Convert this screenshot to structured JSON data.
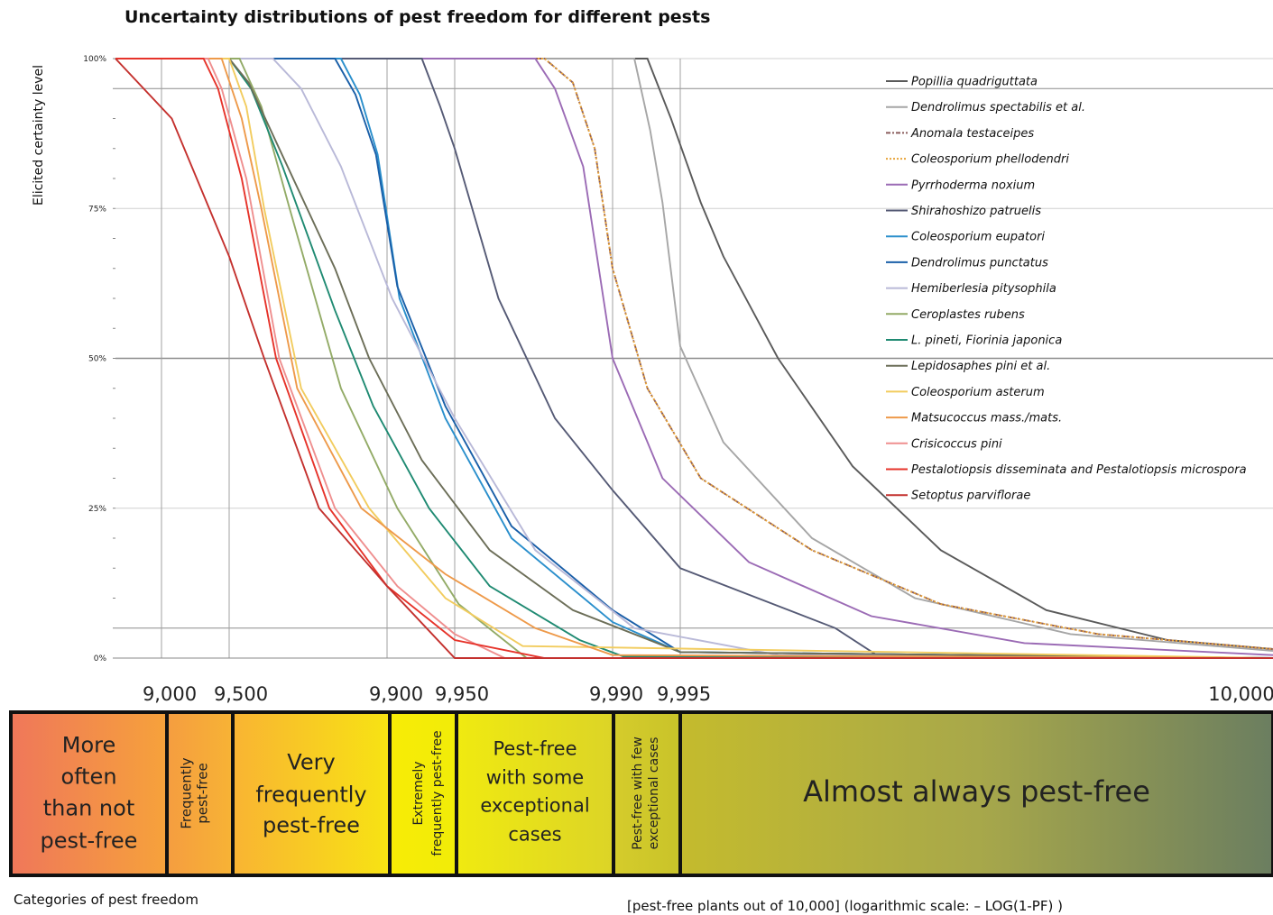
{
  "chart_data": {
    "type": "line",
    "title": "Uncertainty distributions of pest freedom for different pests",
    "ylabel": "Elicited certainty level",
    "y_ticks": [
      "0%",
      "25%",
      "50%",
      "75%",
      "100%"
    ],
    "ylim": [
      0,
      100
    ],
    "x_ticks": [
      "9,000",
      "9,500",
      "9,900",
      "9,950",
      "9,990",
      "9,995",
      "10,000"
    ],
    "x_scale": "log",
    "x_axis_note": "[pest-free plants out of 10,000] (logarithmic scale: – LOG(1-PF) )",
    "categories_label": "Categories of pest freedom",
    "grid": true,
    "legend_position": "top-right",
    "series": [
      {
        "name": "Popillia quadriguttata",
        "color": "#5a5a5a",
        "dash": "",
        "points": [
          [
            9993.0,
            100
          ],
          [
            9994.5,
            90
          ],
          [
            9995.5,
            76
          ],
          [
            9996.0,
            67
          ],
          [
            9997.0,
            50
          ],
          [
            9998.0,
            32
          ],
          [
            9998.8,
            18
          ],
          [
            9999.4,
            8
          ],
          [
            9999.8,
            3
          ],
          [
            10000,
            1.5
          ]
        ]
      },
      {
        "name": "Dendrolimus spectabilis et al.",
        "color": "#a6a6a6",
        "dash": "",
        "points": [
          [
            9992.0,
            100
          ],
          [
            9993.2,
            88
          ],
          [
            9994.0,
            76
          ],
          [
            9995.0,
            52
          ],
          [
            9996.0,
            36
          ],
          [
            9997.5,
            20
          ],
          [
            9998.6,
            10
          ],
          [
            9999.5,
            4
          ],
          [
            10000,
            1.2
          ]
        ]
      },
      {
        "name": "Anomala testaceipes",
        "color": "#8b5c5c",
        "dash": "8 3 2 3",
        "points": [
          [
            9980.0,
            100
          ],
          [
            9985.0,
            96
          ],
          [
            9988.0,
            85
          ],
          [
            9990.0,
            65
          ],
          [
            9993.0,
            45
          ],
          [
            9995.5,
            30
          ],
          [
            9997.5,
            18
          ],
          [
            9998.8,
            9
          ],
          [
            9999.6,
            4
          ],
          [
            10000,
            1.5
          ]
        ]
      },
      {
        "name": "Coleosporium phellodendri",
        "color": "#e8a43a",
        "dash": "2 2",
        "points": [
          [
            9980.0,
            100
          ],
          [
            9985.0,
            96
          ],
          [
            9988.0,
            85
          ],
          [
            9990.0,
            65
          ],
          [
            9993.0,
            45
          ],
          [
            9995.5,
            30
          ],
          [
            9997.5,
            18
          ],
          [
            9998.8,
            9
          ],
          [
            9999.6,
            4
          ],
          [
            10000,
            1.5
          ]
        ]
      },
      {
        "name": "Pyrrhoderma noxium",
        "color": "#9b6bb5",
        "dash": "",
        "points": [
          [
            9978.0,
            100
          ],
          [
            9982.0,
            95
          ],
          [
            9986.5,
            82
          ],
          [
            9990.0,
            50
          ],
          [
            9994.0,
            30
          ],
          [
            9996.5,
            16
          ],
          [
            9998.2,
            7
          ],
          [
            9999.3,
            2.5
          ],
          [
            10000,
            0.5
          ]
        ]
      },
      {
        "name": "Shirahoshizo patruelis",
        "color": "#555a75",
        "dash": "",
        "points": [
          [
            9930.0,
            100
          ],
          [
            9942.0,
            92
          ],
          [
            9950.0,
            85
          ],
          [
            9968.0,
            60
          ],
          [
            9982.0,
            40
          ],
          [
            9990.0,
            28
          ],
          [
            9995.0,
            15
          ],
          [
            9997.8,
            5
          ],
          [
            9998.3,
            0
          ]
        ]
      },
      {
        "name": "Coleosporium eupatori",
        "color": "#2a8fcc",
        "dash": "",
        "points": [
          [
            9840.0,
            100
          ],
          [
            9868.0,
            94
          ],
          [
            9890.0,
            84
          ],
          [
            9912.0,
            60
          ],
          [
            9945.0,
            40
          ],
          [
            9972.0,
            20
          ],
          [
            9990.0,
            6
          ],
          [
            9995.0,
            1
          ]
        ]
      },
      {
        "name": "Dendrolimus punctatus",
        "color": "#1a5fa8",
        "dash": "",
        "points": [
          [
            9830.0,
            100
          ],
          [
            9862.0,
            94
          ],
          [
            9888.0,
            84
          ],
          [
            9910.0,
            62
          ],
          [
            9945.0,
            42
          ],
          [
            9972.0,
            22
          ],
          [
            9990.0,
            8
          ],
          [
            9995.0,
            1
          ]
        ]
      },
      {
        "name": "Hemiberlesia pitysophila",
        "color": "#b9b9d8",
        "dash": "",
        "points": [
          [
            9680.0,
            100
          ],
          [
            9760.0,
            95
          ],
          [
            9840.0,
            82
          ],
          [
            9905.0,
            60
          ],
          [
            9950.0,
            40
          ],
          [
            9978.0,
            18
          ],
          [
            9992.0,
            5
          ],
          [
            9997.0,
            0.5
          ]
        ]
      },
      {
        "name": "Ceroplastes rubens",
        "color": "#93ab67",
        "dash": "",
        "points": [
          [
            9550.0,
            100
          ],
          [
            9640.0,
            92
          ],
          [
            9730.0,
            75
          ],
          [
            9840.0,
            45
          ],
          [
            9910.0,
            25
          ],
          [
            9952.0,
            9
          ],
          [
            9973.0,
            1.5
          ],
          [
            9976.0,
            0
          ]
        ]
      },
      {
        "name": "L. pineti, Fiorinia japonica",
        "color": "#1f8a72",
        "dash": "",
        "points": [
          [
            9500.0,
            100
          ],
          [
            9600.0,
            95
          ],
          [
            9710.0,
            82
          ],
          [
            9830.0,
            58
          ],
          [
            9885.0,
            42
          ],
          [
            9935.0,
            25
          ],
          [
            9965.0,
            12
          ],
          [
            9986.0,
            3
          ],
          [
            9991.0,
            0.3
          ]
        ]
      },
      {
        "name": "Lepidosaphes pini et al.",
        "color": "#6c6e58",
        "dash": "",
        "points": [
          [
            9500.0,
            100
          ],
          [
            9590.0,
            96
          ],
          [
            9700.0,
            85
          ],
          [
            9830.0,
            65
          ],
          [
            9880.0,
            50
          ],
          [
            9930.0,
            33
          ],
          [
            9965.0,
            18
          ],
          [
            9985.0,
            8
          ],
          [
            9995.0,
            1
          ]
        ]
      },
      {
        "name": "Coleosporium asterum",
        "color": "#f2cc5e",
        "dash": "",
        "points": [
          [
            9500.0,
            100
          ],
          [
            9580.0,
            92
          ],
          [
            9650.0,
            75
          ],
          [
            9760.0,
            45
          ],
          [
            9880.0,
            25
          ],
          [
            9945.0,
            10
          ],
          [
            9975.0,
            2
          ]
        ]
      },
      {
        "name": "Matsucoccus mass./mats.",
        "color": "#ee9a4a",
        "dash": "",
        "points": [
          [
            9460.0,
            100
          ],
          [
            9560.0,
            90
          ],
          [
            9640.0,
            75
          ],
          [
            9750.0,
            45
          ],
          [
            9870.0,
            25
          ],
          [
            9945.0,
            14
          ],
          [
            9978.0,
            5
          ],
          [
            9990.0,
            0.5
          ]
        ]
      },
      {
        "name": "Crisicoccus pini",
        "color": "#ef8f8f",
        "dash": "",
        "points": [
          [
            9380.0,
            100
          ],
          [
            9460.0,
            95
          ],
          [
            9580.0,
            80
          ],
          [
            9700.0,
            50
          ],
          [
            9830.0,
            25
          ],
          [
            9910.0,
            12
          ],
          [
            9950.0,
            4
          ],
          [
            9970.0,
            0
          ]
        ]
      },
      {
        "name": "Pestalotiopsis disseminata and Pestalotiopsis microspora",
        "color": "#e6332a",
        "dash": "",
        "points": [
          [
            9350.0,
            100
          ],
          [
            9440.0,
            95
          ],
          [
            9560.0,
            80
          ],
          [
            9690.0,
            50
          ],
          [
            9820.0,
            25
          ],
          [
            9900.0,
            12
          ],
          [
            9950.0,
            3
          ],
          [
            9980.0,
            0
          ]
        ]
      },
      {
        "name": "Setoptus parviflorae",
        "color": "#c4312e",
        "dash": "",
        "points": [
          [
            8800.0,
            100
          ],
          [
            9100.0,
            90
          ],
          [
            9500.0,
            67
          ],
          [
            9650.0,
            50
          ],
          [
            9800.0,
            25
          ],
          [
            9900.0,
            12
          ],
          [
            9950.0,
            0
          ]
        ]
      }
    ],
    "categories": [
      {
        "label": "More often than not pest-free",
        "from": "0",
        "to": "9,000"
      },
      {
        "label": "Frequently pest-free",
        "from": "9,000",
        "to": "9,500"
      },
      {
        "label": "Very frequently pest-free",
        "from": "9,500",
        "to": "9,900"
      },
      {
        "label": "Extremely frequently pest-free",
        "from": "9,900",
        "to": "9,950"
      },
      {
        "label": "Pest-free with some exceptional cases",
        "from": "9,950",
        "to": "9,990"
      },
      {
        "label": "Pest-free with few exceptional cases",
        "from": "9,990",
        "to": "9,995"
      },
      {
        "label": "Almost always pest-free",
        "from": "9,995",
        "to": "10,000"
      }
    ]
  }
}
